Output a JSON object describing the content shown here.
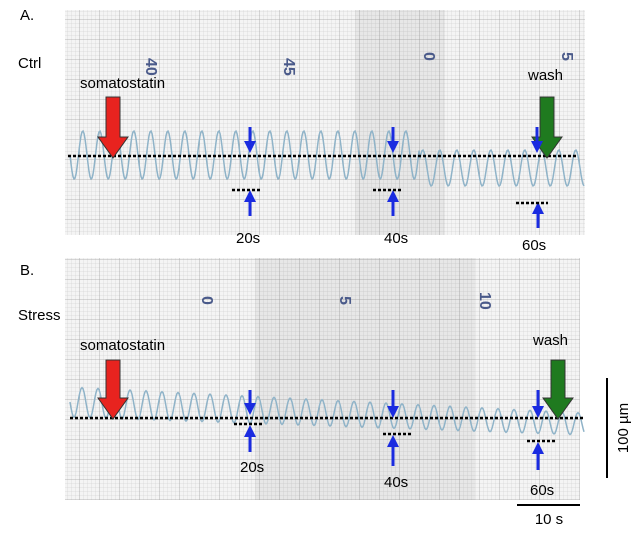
{
  "panel_a": {
    "label": "A.",
    "condition": "Ctrl",
    "paper_marks": [
      "40",
      "45",
      "0",
      "5"
    ],
    "drug": "somatostatin",
    "washout": "wash",
    "timepoints": [
      "20s",
      "40s",
      "60s"
    ]
  },
  "panel_b": {
    "label": "B.",
    "condition": "Stress",
    "paper_marks": [
      "0",
      "5",
      "10"
    ],
    "drug": "somatostatin",
    "washout": "wash",
    "timepoints": [
      "20s",
      "40s",
      "60s"
    ]
  },
  "scale_bar": {
    "amplitude": "100 µm",
    "time": "10 s"
  }
}
